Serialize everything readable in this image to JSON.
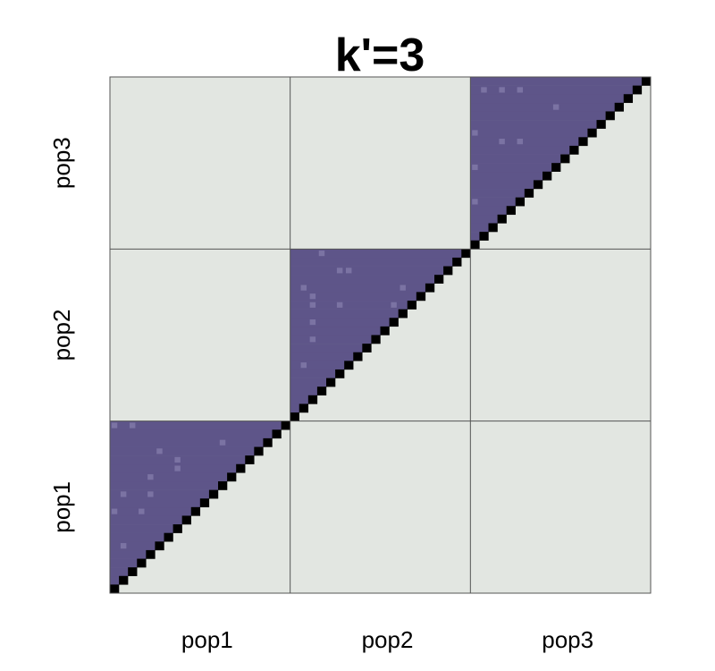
{
  "chart_data": {
    "type": "heatmap",
    "title": "k'=3",
    "xlabel": "",
    "ylabel": "",
    "x_tick_labels": [
      "pop1",
      "pop2",
      "pop3"
    ],
    "y_tick_labels": [
      "pop1",
      "pop2",
      "pop3"
    ],
    "cells_per_block": 20,
    "background_color": "#e2e6e1",
    "fill_color": "#5e5589",
    "highlight_color": "#7b73a3",
    "diagonal_color": "#000000",
    "block_border_color": "#555555",
    "grid": false,
    "legend": "none",
    "highlights": [
      {
        "block": "pop1",
        "cells": [
          [
            0,
            19
          ],
          [
            2,
            19
          ],
          [
            5,
            16
          ],
          [
            12,
            17
          ],
          [
            4,
            13
          ],
          [
            7,
            15
          ],
          [
            1,
            11
          ],
          [
            7,
            14
          ],
          [
            4,
            11
          ],
          [
            3,
            9
          ],
          [
            0,
            9
          ],
          [
            1,
            5
          ]
        ]
      },
      {
        "block": "pop2",
        "cells": [
          [
            3,
            19
          ],
          [
            5,
            17
          ],
          [
            1,
            15
          ],
          [
            2,
            14
          ],
          [
            6,
            17
          ],
          [
            12,
            15
          ],
          [
            11,
            13
          ],
          [
            5,
            13
          ],
          [
            2,
            13
          ],
          [
            2,
            11
          ],
          [
            2,
            9
          ],
          [
            1,
            6
          ]
        ]
      },
      {
        "block": "pop3",
        "cells": [
          [
            1,
            18
          ],
          [
            3,
            18
          ],
          [
            5,
            18
          ],
          [
            9,
            16
          ],
          [
            0,
            13
          ],
          [
            3,
            12
          ],
          [
            5,
            12
          ],
          [
            0,
            9
          ],
          [
            0,
            5
          ]
        ]
      }
    ]
  }
}
